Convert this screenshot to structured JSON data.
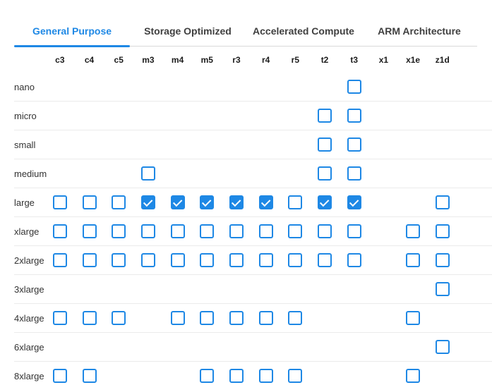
{
  "colors": {
    "accent": "#1e88e5",
    "tab_inactive_text": "#3f3f3f",
    "row_separator": "#ebebeb",
    "tabbar_border": "#d9d9d9"
  },
  "tabs": [
    {
      "label": "General Purpose",
      "active": true
    },
    {
      "label": "Storage Optimized",
      "active": false
    },
    {
      "label": "Accelerated Compute",
      "active": false
    },
    {
      "label": "ARM Architecture",
      "active": false
    }
  ],
  "grid": {
    "columns": [
      "c3",
      "c4",
      "c5",
      "m3",
      "m4",
      "m5",
      "r3",
      "r4",
      "r5",
      "t2",
      "t3",
      "x1",
      "x1e",
      "z1d"
    ],
    "rows": [
      {
        "label": "nano",
        "cells": [
          null,
          null,
          null,
          null,
          null,
          null,
          null,
          null,
          null,
          null,
          "unchecked",
          null,
          null,
          null
        ]
      },
      {
        "label": "micro",
        "cells": [
          null,
          null,
          null,
          null,
          null,
          null,
          null,
          null,
          null,
          "unchecked",
          "unchecked",
          null,
          null,
          null
        ]
      },
      {
        "label": "small",
        "cells": [
          null,
          null,
          null,
          null,
          null,
          null,
          null,
          null,
          null,
          "unchecked",
          "unchecked",
          null,
          null,
          null
        ]
      },
      {
        "label": "medium",
        "cells": [
          null,
          null,
          null,
          "unchecked",
          null,
          null,
          null,
          null,
          null,
          "unchecked",
          "unchecked",
          null,
          null,
          null
        ]
      },
      {
        "label": "large",
        "cells": [
          "unchecked",
          "unchecked",
          "unchecked",
          "checked",
          "checked",
          "checked",
          "checked",
          "checked",
          "unchecked",
          "checked",
          "checked",
          null,
          null,
          "unchecked"
        ]
      },
      {
        "label": "xlarge",
        "cells": [
          "unchecked",
          "unchecked",
          "unchecked",
          "unchecked",
          "unchecked",
          "unchecked",
          "unchecked",
          "unchecked",
          "unchecked",
          "unchecked",
          "unchecked",
          null,
          "unchecked",
          "unchecked"
        ]
      },
      {
        "label": "2xlarge",
        "cells": [
          "unchecked",
          "unchecked",
          "unchecked",
          "unchecked",
          "unchecked",
          "unchecked",
          "unchecked",
          "unchecked",
          "unchecked",
          "unchecked",
          "unchecked",
          null,
          "unchecked",
          "unchecked"
        ]
      },
      {
        "label": "3xlarge",
        "cells": [
          null,
          null,
          null,
          null,
          null,
          null,
          null,
          null,
          null,
          null,
          null,
          null,
          null,
          "unchecked"
        ]
      },
      {
        "label": "4xlarge",
        "cells": [
          "unchecked",
          "unchecked",
          "unchecked",
          null,
          "unchecked",
          "unchecked",
          "unchecked",
          "unchecked",
          "unchecked",
          null,
          null,
          null,
          "unchecked",
          null
        ]
      },
      {
        "label": "6xlarge",
        "cells": [
          null,
          null,
          null,
          null,
          null,
          null,
          null,
          null,
          null,
          null,
          null,
          null,
          null,
          "unchecked"
        ]
      },
      {
        "label": "8xlarge",
        "cells": [
          "unchecked",
          "unchecked",
          null,
          null,
          null,
          "unchecked",
          "unchecked",
          "unchecked",
          "unchecked",
          null,
          null,
          null,
          "unchecked",
          null
        ]
      }
    ]
  }
}
